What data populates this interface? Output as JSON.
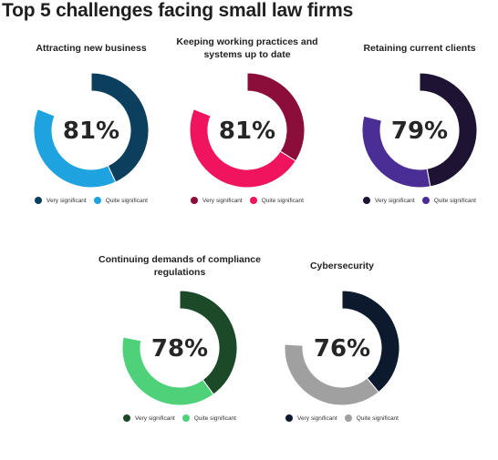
{
  "title": "Top 5 challenges facing small law firms",
  "chart_data": [
    {
      "type": "pie",
      "title": "Attracting new business",
      "center_label": "81%",
      "series": [
        {
          "name": "Very significant",
          "value": 43,
          "color": "#0c3f5e"
        },
        {
          "name": "Quite significant",
          "value": 38,
          "color": "#1fa2e0"
        }
      ]
    },
    {
      "type": "pie",
      "title": "Keeping working practices and systems up to date",
      "center_label": "81%",
      "series": [
        {
          "name": "Very significant",
          "value": 34,
          "color": "#8b0e3a"
        },
        {
          "name": "Quite significant",
          "value": 47,
          "color": "#f0145f"
        }
      ]
    },
    {
      "type": "pie",
      "title": "Retaining current clients",
      "center_label": "79%",
      "series": [
        {
          "name": "Very significant",
          "value": 47,
          "color": "#1e1333"
        },
        {
          "name": "Quite significant",
          "value": 32,
          "color": "#4b2d96"
        }
      ]
    },
    {
      "type": "pie",
      "title": "Continuing demands of compliance regulations",
      "center_label": "78%",
      "series": [
        {
          "name": "Very significant",
          "value": 40,
          "color": "#1c4a28"
        },
        {
          "name": "Quite significant",
          "value": 38,
          "color": "#4fd17a"
        }
      ]
    },
    {
      "type": "pie",
      "title": "Cybersecurity",
      "center_label": "76%",
      "series": [
        {
          "name": "Very significant",
          "value": 39,
          "color": "#0d1a2e"
        },
        {
          "name": "Quite significant",
          "value": 37,
          "color": "#a0a0a0"
        }
      ]
    }
  ]
}
